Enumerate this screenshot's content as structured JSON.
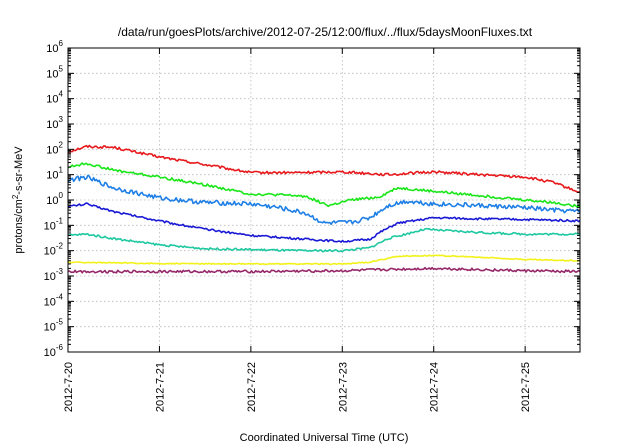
{
  "chart_data": {
    "type": "line",
    "title": "/data/run/goesPlots/archive/2012-07-25/12:00/flux/../flux/5daysMoonFluxes.txt",
    "xlabel": "Coordinated Universal Time (UTC)",
    "ylabel": "protons/cm²-s-sr-MeV",
    "ylabel_base": "protons/cm",
    "ylabel_sup": "2",
    "ylabel_rest": "-s-sr-MeV",
    "y_scale": "log",
    "ylim_exponent": [
      -6,
      6
    ],
    "xlim_days": [
      0,
      5.6
    ],
    "grid": true,
    "x_ticks": [
      "2012-7-20",
      "2012-7-21",
      "2012-7-22",
      "2012-7-23",
      "2012-7-24",
      "2012-7-25"
    ],
    "y_ticks": [
      {
        "base": "10",
        "exp": "-6"
      },
      {
        "base": "10",
        "exp": "-5"
      },
      {
        "base": "10",
        "exp": "-4"
      },
      {
        "base": "10",
        "exp": "-3"
      },
      {
        "base": "10",
        "exp": "-2"
      },
      {
        "base": "10",
        "exp": "-1"
      },
      {
        "base": "10",
        "exp": "0"
      },
      {
        "base": "10",
        "exp": "1"
      },
      {
        "base": "10",
        "exp": "2"
      },
      {
        "base": "10",
        "exp": "3"
      },
      {
        "base": "10",
        "exp": "4"
      },
      {
        "base": "10",
        "exp": "5"
      },
      {
        "base": "10",
        "exp": "6"
      }
    ],
    "series": [
      {
        "color": "#e8191c",
        "noise": 0.05,
        "x": [
          0,
          0.2,
          0.5,
          1.0,
          1.5,
          2.0,
          2.5,
          3.0,
          3.5,
          4.0,
          4.5,
          5.0,
          5.3,
          5.6
        ],
        "y": [
          80,
          130,
          120,
          50,
          25,
          12,
          12,
          13,
          10,
          13,
          10,
          8,
          5,
          2
        ]
      },
      {
        "color": "#1ae61a",
        "noise": 0.05,
        "x": [
          0,
          0.2,
          0.5,
          1.0,
          1.5,
          2.0,
          2.3,
          2.6,
          2.85,
          3.1,
          3.4,
          3.6,
          4.0,
          4.5,
          5.0,
          5.3,
          5.6
        ],
        "y": [
          20,
          28,
          15,
          8,
          4,
          1.7,
          1.6,
          1.4,
          0.6,
          1.0,
          1.3,
          3,
          2.2,
          1.5,
          1.0,
          0.8,
          0.55
        ]
      },
      {
        "color": "#1e7fe6",
        "noise": 0.09,
        "x": [
          0,
          0.2,
          0.5,
          1.0,
          1.5,
          2.0,
          2.3,
          2.6,
          2.8,
          3.1,
          3.3,
          3.5,
          3.7,
          4.0,
          4.5,
          5.0,
          5.3,
          5.6
        ],
        "y": [
          6,
          8,
          3,
          1.2,
          0.8,
          0.7,
          0.5,
          0.3,
          0.12,
          0.13,
          0.2,
          0.6,
          0.9,
          0.7,
          0.6,
          0.5,
          0.4,
          0.35
        ]
      },
      {
        "color": "#1a1ad6",
        "noise": 0.04,
        "x": [
          0,
          0.2,
          0.5,
          1.0,
          1.5,
          2.0,
          2.5,
          3.0,
          3.3,
          3.4,
          3.6,
          4.0,
          4.5,
          5.0,
          5.6
        ],
        "y": [
          0.55,
          0.7,
          0.35,
          0.15,
          0.07,
          0.04,
          0.03,
          0.023,
          0.028,
          0.05,
          0.12,
          0.2,
          0.18,
          0.17,
          0.15
        ]
      },
      {
        "color": "#1ec8a0",
        "noise": 0.04,
        "x": [
          0,
          0.2,
          0.5,
          1.0,
          1.5,
          2.0,
          2.5,
          3.0,
          3.3,
          3.5,
          3.9,
          4.2,
          4.6,
          5.0,
          5.6
        ],
        "y": [
          0.04,
          0.045,
          0.03,
          0.017,
          0.012,
          0.011,
          0.01,
          0.01,
          0.013,
          0.03,
          0.07,
          0.06,
          0.05,
          0.045,
          0.045
        ]
      },
      {
        "color": "#f2f21a",
        "noise": 0.02,
        "x": [
          0,
          0.5,
          1.0,
          2.0,
          3.0,
          3.3,
          3.6,
          4.0,
          4.5,
          5.0,
          5.6
        ],
        "y": [
          0.0035,
          0.0033,
          0.0031,
          0.003,
          0.003,
          0.0035,
          0.006,
          0.0065,
          0.0055,
          0.0045,
          0.004
        ]
      },
      {
        "color": "#962869",
        "noise": 0.05,
        "x": [
          0,
          1.0,
          2.0,
          3.0,
          3.5,
          4.0,
          5.0,
          5.6
        ],
        "y": [
          0.0015,
          0.0015,
          0.0015,
          0.0016,
          0.0018,
          0.002,
          0.0016,
          0.0015
        ]
      }
    ]
  }
}
